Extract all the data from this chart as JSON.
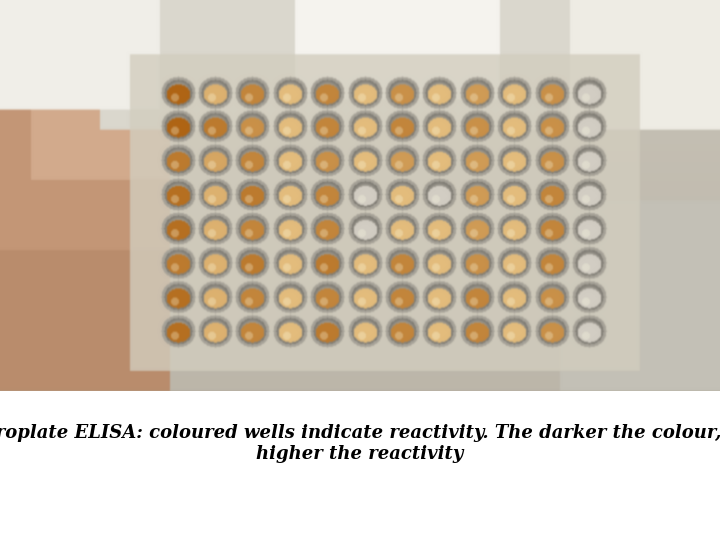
{
  "caption_line1": "Microplate ELISA: coloured wells indicate reactivity. The darker the colour, the",
  "caption_line2": "higher the reactivity",
  "caption_fontsize": 13,
  "caption_fontstyle": "italic",
  "caption_fontweight": "bold",
  "bg_color": "#ffffff",
  "rows": 8,
  "cols": 12,
  "well_reactivity": [
    [
      1.0,
      0.3,
      0.7,
      0.2,
      0.7,
      0.2,
      0.6,
      0.2,
      0.5,
      0.2,
      0.6,
      0.1
    ],
    [
      1.0,
      0.8,
      0.6,
      0.2,
      0.7,
      0.2,
      0.7,
      0.2,
      0.6,
      0.2,
      0.6,
      0.1
    ],
    [
      0.8,
      0.4,
      0.7,
      0.2,
      0.6,
      0.2,
      0.5,
      0.2,
      0.5,
      0.2,
      0.6,
      0.1
    ],
    [
      0.9,
      0.3,
      0.8,
      0.2,
      0.7,
      0.1,
      0.2,
      0.1,
      0.5,
      0.2,
      0.7,
      0.1
    ],
    [
      0.9,
      0.3,
      0.7,
      0.2,
      0.7,
      0.1,
      0.2,
      0.2,
      0.5,
      0.2,
      0.7,
      0.1
    ],
    [
      0.8,
      0.3,
      0.8,
      0.2,
      0.8,
      0.2,
      0.7,
      0.2,
      0.6,
      0.2,
      0.7,
      0.1
    ],
    [
      0.9,
      0.3,
      0.7,
      0.2,
      0.7,
      0.2,
      0.7,
      0.2,
      0.7,
      0.2,
      0.6,
      0.1
    ],
    [
      0.9,
      0.3,
      0.7,
      0.2,
      0.8,
      0.2,
      0.7,
      0.2,
      0.7,
      0.2,
      0.6,
      0.1
    ]
  ],
  "photo_bg_color": [
    175,
    165,
    148
  ],
  "hand_color": [
    195,
    145,
    115
  ],
  "plate_color": [
    210,
    205,
    190
  ],
  "bottle_color": [
    230,
    228,
    220
  ],
  "well_rim_color": [
    195,
    190,
    178
  ],
  "well_dark_color": [
    175,
    100,
    20
  ],
  "well_light_color": [
    240,
    210,
    150
  ],
  "well_clear_color": [
    210,
    205,
    195
  ]
}
